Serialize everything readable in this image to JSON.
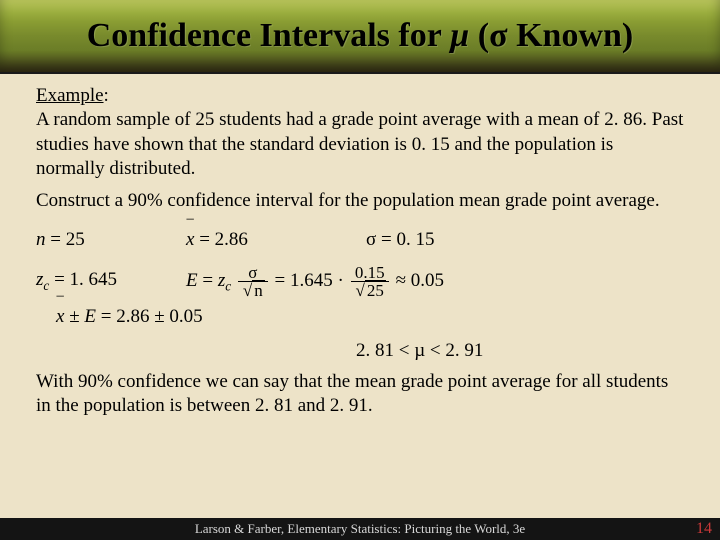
{
  "title": {
    "prefix": "Confidence Intervals for ",
    "mu": "µ",
    "middle": " (",
    "sigma": "σ",
    "suffix": " Known)"
  },
  "example_label": "Example",
  "colon": ":",
  "problem_text": "A random sample of 25 students had a grade point average with a mean of 2. 86.  Past studies have shown that the standard deviation is 0. 15 and the population is normally distributed.",
  "construct_text": "Construct a 90% confidence interval for the population mean grade point average.",
  "given": {
    "n_label": "n",
    "n_eq": " = 25",
    "xbar_label": "x",
    "xbar_eq": " = 2.86",
    "sigma_label": "σ",
    "sigma_eq": " = 0. 15",
    "zc_label": "z",
    "zc_sub": "c",
    "zc_eq": " = 1. 645"
  },
  "formula": {
    "E": "E",
    "eq1": " = ",
    "z": "z",
    "zc_sub": "c",
    "sigma": "σ",
    "sqrt_n": "n",
    "num_val": "0.15",
    "den_val": "25",
    "result": " ≈ 0.05",
    "const": " = 1.645 · "
  },
  "interval": {
    "xbar": "x",
    "pm": " ± ",
    "E": "E",
    "eq": " = 2.86 ± 0.05",
    "range": "2. 81 < µ < 2. 91"
  },
  "conclusion": "With 90% confidence we can say that the mean grade point      average for all students in the population is between 2. 81 and 2. 91.",
  "footer": {
    "text": "Larson & Farber, Elementary Statistics: Picturing the World, 3e",
    "page": "14"
  },
  "colors": {
    "background": "#ede3c8",
    "footer_bg": "#141414",
    "page_num": "#c93838"
  }
}
